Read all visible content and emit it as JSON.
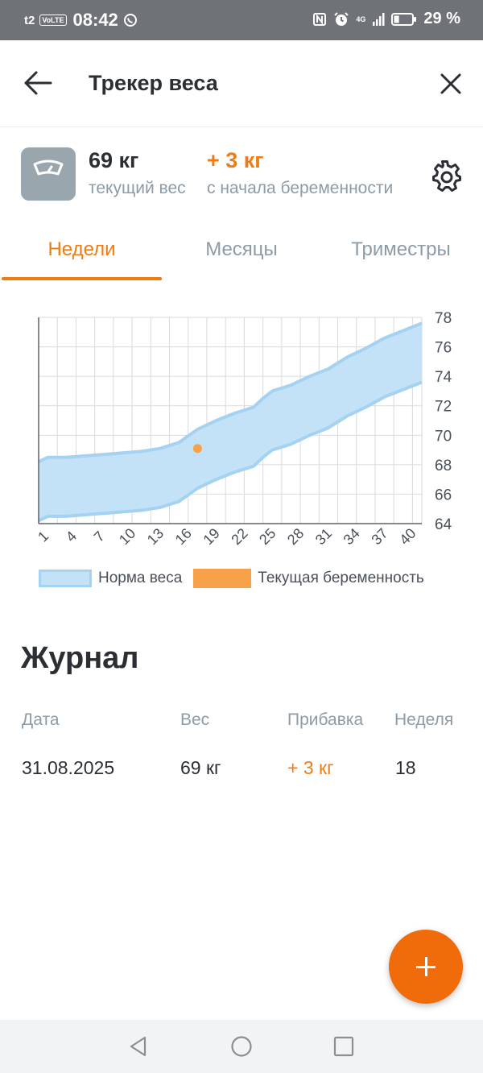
{
  "status_bar": {
    "carrier": "t2",
    "volte": "VoLTE",
    "time": "08:42",
    "network": "4G",
    "battery_percent": 29,
    "battery_text": "29 %",
    "icons": [
      "whatsapp-icon",
      "nfc-icon",
      "alarm-icon",
      "signal-icon",
      "battery-icon"
    ]
  },
  "header": {
    "title": "Трекер веса",
    "back_icon": "arrow-left-icon",
    "close_icon": "close-icon"
  },
  "summary": {
    "current_weight": "69 кг",
    "current_weight_label": "текущий вес",
    "gain": "+ 3 кг",
    "gain_label": "с начала беременности",
    "scale_icon": "scale-icon",
    "settings_icon": "gear-icon"
  },
  "tabs": [
    {
      "label": "Недели",
      "active": true
    },
    {
      "label": "Месяцы",
      "active": false
    },
    {
      "label": "Триместры",
      "active": false
    }
  ],
  "chart_data": {
    "type": "area",
    "x_ticks": [
      "1",
      "4",
      "7",
      "10",
      "13",
      "16",
      "19",
      "22",
      "25",
      "28",
      "31",
      "34",
      "37",
      "40"
    ],
    "xlim": [
      1,
      42
    ],
    "y_ticks": [
      "64",
      "66",
      "68",
      "70",
      "72",
      "74",
      "76",
      "78"
    ],
    "ylim": [
      64,
      78
    ],
    "grid": true,
    "y_axis_side": "right",
    "norm_band": {
      "weeks": [
        1,
        2,
        4,
        6,
        8,
        10,
        12,
        14,
        16,
        18,
        20,
        22,
        24,
        25,
        26,
        28,
        30,
        32,
        34,
        36,
        38,
        40,
        42
      ],
      "lower": [
        64.2,
        64.5,
        64.5,
        64.6,
        64.7,
        64.8,
        64.9,
        65.1,
        65.5,
        66.4,
        67.0,
        67.5,
        67.9,
        68.5,
        69.0,
        69.4,
        70.0,
        70.5,
        71.3,
        71.9,
        72.6,
        73.1,
        73.6
      ],
      "upper": [
        68.2,
        68.5,
        68.5,
        68.6,
        68.7,
        68.8,
        68.9,
        69.1,
        69.5,
        70.4,
        71.0,
        71.5,
        71.9,
        72.5,
        73.0,
        73.4,
        74.0,
        74.5,
        75.3,
        75.9,
        76.6,
        77.1,
        77.6
      ]
    },
    "current_points": [
      {
        "week": 18,
        "weight": 69.1
      }
    ],
    "colors": {
      "band_fill": "#c3e2f8",
      "band_edge": "#a6d2f1",
      "current": "#f7a14b",
      "grid": "#d8dadc"
    },
    "legend": [
      {
        "label": "Норма веса",
        "swatch": "band"
      },
      {
        "label": "Текущая беременность",
        "swatch": "current"
      }
    ],
    "legend_placement": "bottom-left"
  },
  "journal": {
    "title": "Журнал",
    "columns": [
      "Дата",
      "Вес",
      "Прибавка",
      "Неделя"
    ],
    "rows": [
      {
        "date": "31.08.2025",
        "weight": "69 кг",
        "gain": "+ 3 кг",
        "week": "18"
      }
    ]
  },
  "fab": {
    "icon": "plus-icon"
  },
  "nav_bar": {
    "icons": [
      "nav-back-icon",
      "nav-home-icon",
      "nav-recents-icon"
    ]
  },
  "colors": {
    "accent": "#f07b12",
    "fab": "#f06b0a",
    "muted_text": "#8c9ba6"
  }
}
